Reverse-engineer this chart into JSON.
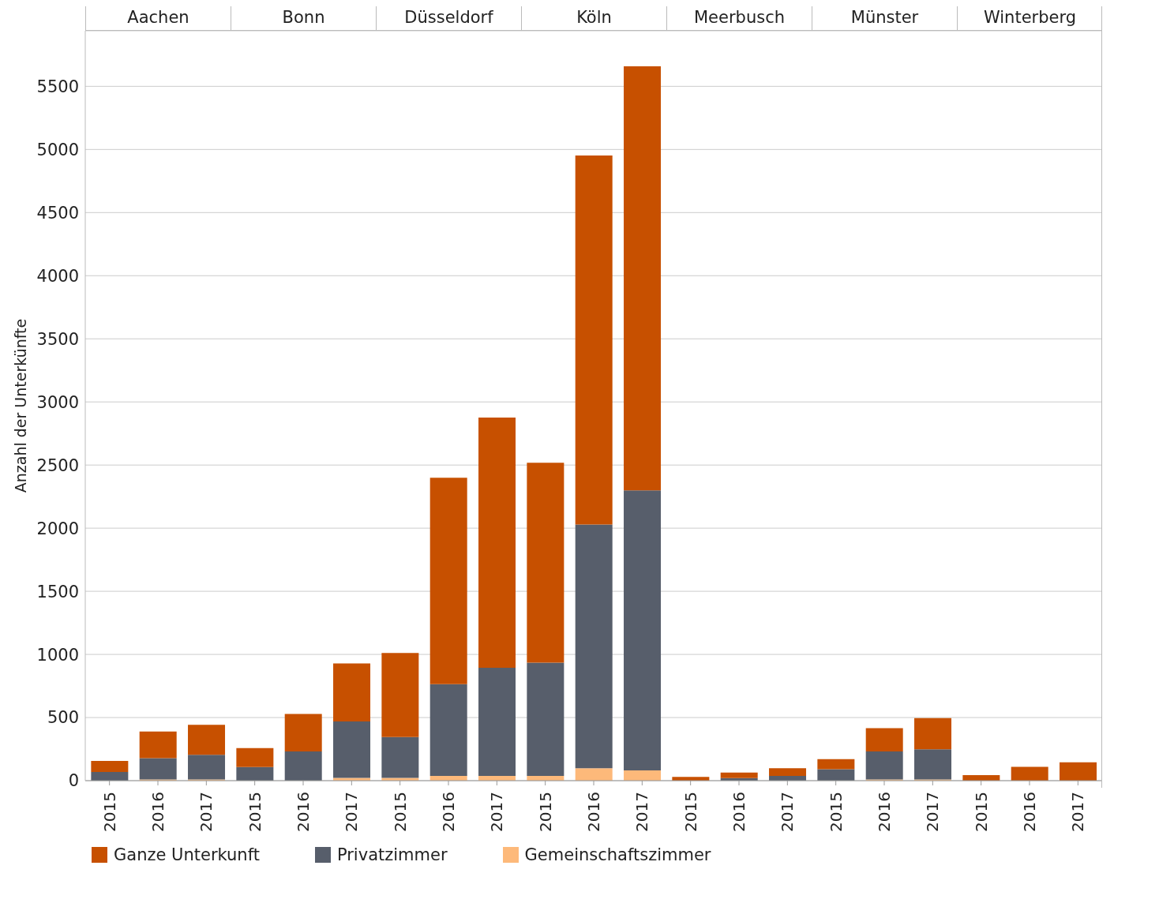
{
  "chart_data": [
    {
      "type": "bar",
      "title": "Aachen",
      "ylabel": "Anzahl der Unterkünfte",
      "categories": [
        "2015",
        "2016",
        "2017"
      ],
      "stacked": true,
      "ylim": [
        0,
        5940
      ],
      "yticks": [
        0,
        500,
        1000,
        1500,
        2000,
        2500,
        3000,
        3500,
        4000,
        4500,
        5000,
        5500
      ],
      "grid": "y",
      "legend": "bottom",
      "series": [
        {
          "name": "Gemeinschaftszimmer",
          "color": "#fdb97a",
          "values": [
            null,
            10,
            10
          ]
        },
        {
          "name": "Privatzimmer",
          "color": "#575e6b",
          "values": [
            68,
            168,
            195
          ]
        },
        {
          "name": "Ganze Unterkunft",
          "color": "#c75000",
          "values": [
            88,
            212,
            238
          ]
        }
      ]
    },
    {
      "type": "bar",
      "title": "Bonn",
      "categories": [
        "2015",
        "2016",
        "2017"
      ],
      "stacked": true,
      "ylim": [
        0,
        5940
      ],
      "yticks": [
        0,
        500,
        1000,
        1500,
        2000,
        2500,
        3000,
        3500,
        4000,
        4500,
        5000,
        5500
      ],
      "grid": "y",
      "tick_labels": "x",
      "series": [
        {
          "color": "#fdb97a",
          "values": [
            0,
            null,
            22
          ]
        },
        {
          "color": "#575e6b",
          "values": [
            108,
            232,
            447
          ]
        },
        {
          "color": "#c75000",
          "values": [
            150,
            297,
            460
          ]
        }
      ]
    },
    {
      "type": "bar",
      "title": "Düsseldorf",
      "categories": [
        "2015",
        "2016",
        "2017"
      ],
      "stacked": true,
      "ylim": [
        0,
        5940
      ],
      "yticks": [
        0,
        500,
        1000,
        1500,
        2000,
        2500,
        3000,
        3500,
        4000,
        4500,
        5000,
        5500
      ],
      "grid": "y",
      "tick_labels": "x",
      "series": [
        {
          "color": "#fdb97a",
          "values": [
            22,
            37,
            37
          ]
        },
        {
          "color": "#575e6b",
          "values": [
            324,
            728,
            857
          ]
        },
        {
          "color": "#c75000",
          "values": [
            666,
            1635,
            1982
          ]
        }
      ]
    },
    {
      "type": "bar",
      "title": "Köln",
      "categories": [
        "2015",
        "2016",
        "2017"
      ],
      "stacked": true,
      "ylim": [
        0,
        5940
      ],
      "yticks": [
        0,
        500,
        1000,
        1500,
        2000,
        2500,
        3000,
        3500,
        4000,
        4500,
        5000,
        5500
      ],
      "grid": "y",
      "tick_labels": "x",
      "series": [
        {
          "color": "#fdb97a",
          "values": [
            37,
            99,
            81
          ]
        },
        {
          "color": "#575e6b",
          "values": [
            898,
            1930,
            2219
          ]
        },
        {
          "color": "#c75000",
          "values": [
            1583,
            2923,
            3359
          ]
        }
      ]
    },
    {
      "type": "bar",
      "title": "Meerbusch",
      "categories": [
        "2015",
        "2016",
        "2017"
      ],
      "stacked": true,
      "ylim": [
        0,
        5940
      ],
      "yticks": [
        0,
        500,
        1000,
        1500,
        2000,
        2500,
        3000,
        3500,
        4000,
        4500,
        5000,
        5500
      ],
      "grid": "y",
      "tick_labels": "x",
      "series": [
        {
          "color": "#fdb97a",
          "values": [
            0,
            0,
            0
          ]
        },
        {
          "color": "#575e6b",
          "values": [
            0,
            20,
            37
          ]
        },
        {
          "color": "#c75000",
          "values": [
            29,
            44,
            62
          ]
        }
      ]
    },
    {
      "type": "bar",
      "title": "Münster",
      "categories": [
        "2015",
        "2016",
        "2017"
      ],
      "stacked": true,
      "ylim": [
        0,
        5940
      ],
      "yticks": [
        0,
        500,
        1000,
        1500,
        2000,
        2500,
        3000,
        3500,
        4000,
        4500,
        5000,
        5500
      ],
      "grid": "y",
      "tick_labels": "x",
      "series": [
        {
          "color": "#fdb97a",
          "values": [
            0,
            10,
            10
          ]
        },
        {
          "color": "#575e6b",
          "values": [
            90,
            221,
            239
          ]
        },
        {
          "color": "#c75000",
          "values": [
            80,
            185,
            247
          ]
        }
      ]
    },
    {
      "type": "bar",
      "title": "Winterberg",
      "categories": [
        "2015",
        "2016",
        "2017"
      ],
      "stacked": true,
      "ylim": [
        0,
        5940
      ],
      "yticks": [
        0,
        500,
        1000,
        1500,
        2000,
        2500,
        3000,
        3500,
        4000,
        4500,
        5000,
        5500
      ],
      "grid": "y",
      "tick_labels": "x",
      "series": [
        {
          "color": "#fdb97a",
          "values": [
            0,
            0,
            0
          ]
        },
        {
          "color": "#575e6b",
          "values": [
            0,
            null,
            null
          ]
        },
        {
          "color": "#c75000",
          "values": [
            44,
            109,
            146
          ]
        }
      ]
    }
  ]
}
